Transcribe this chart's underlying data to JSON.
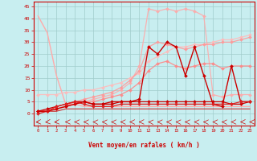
{
  "background_color": "#c8eef0",
  "grid_color": "#a0cccc",
  "xlim": [
    -0.5,
    23.5
  ],
  "ylim": [
    0,
    47
  ],
  "xlabel": "Vent moyen/en rafales ( km/h )",
  "xlabel_color": "#cc0000",
  "yticks": [
    0,
    5,
    10,
    15,
    20,
    25,
    30,
    35,
    40,
    45
  ],
  "xticks": [
    0,
    1,
    2,
    3,
    4,
    5,
    6,
    7,
    8,
    9,
    10,
    11,
    12,
    13,
    14,
    15,
    16,
    17,
    18,
    19,
    20,
    21,
    22,
    23
  ],
  "series": [
    {
      "x": [
        0,
        1,
        2,
        3,
        4,
        5,
        6,
        7,
        8,
        9,
        10,
        11,
        12,
        13,
        14,
        15,
        16,
        17,
        18,
        19,
        20,
        21,
        22,
        23
      ],
      "y": [
        41,
        34,
        16,
        4,
        4,
        3,
        3,
        3,
        3,
        3,
        3,
        3,
        3,
        3,
        3,
        3,
        3,
        3,
        3,
        3,
        3,
        3,
        3,
        3
      ],
      "color": "#ffaaaa",
      "marker": null,
      "linewidth": 1.0,
      "alpha": 1.0
    },
    {
      "x": [
        0,
        1,
        2,
        3,
        4,
        5,
        6,
        7,
        8,
        9,
        10,
        11,
        12,
        13,
        14,
        15,
        16,
        17,
        18,
        19,
        20,
        21,
        22,
        23
      ],
      "y": [
        8,
        8,
        8,
        9,
        9,
        10,
        10,
        11,
        12,
        13,
        15,
        17,
        22,
        24,
        26,
        28,
        28,
        29,
        29,
        30,
        31,
        31,
        32,
        33
      ],
      "color": "#ffbbbb",
      "marker": "D",
      "markersize": 2.0,
      "linewidth": 0.9,
      "alpha": 0.9
    },
    {
      "x": [
        0,
        1,
        2,
        3,
        4,
        5,
        6,
        7,
        8,
        9,
        10,
        11,
        12,
        13,
        14,
        15,
        16,
        17,
        18,
        19,
        20,
        21,
        22,
        23
      ],
      "y": [
        1,
        1,
        2,
        3,
        4,
        5,
        6,
        7,
        8,
        10,
        13,
        20,
        44,
        43,
        44,
        43,
        44,
        43,
        41,
        8,
        7,
        8,
        8,
        8
      ],
      "color": "#ffaaaa",
      "marker": "D",
      "markersize": 2.0,
      "linewidth": 0.9,
      "alpha": 0.9
    },
    {
      "x": [
        0,
        1,
        2,
        3,
        4,
        5,
        6,
        7,
        8,
        9,
        10,
        11,
        12,
        13,
        14,
        15,
        16,
        17,
        18,
        19,
        20,
        21,
        22,
        23
      ],
      "y": [
        1,
        1,
        2,
        3,
        5,
        6,
        7,
        8,
        9,
        11,
        14,
        18,
        28,
        30,
        29,
        28,
        27,
        28,
        29,
        29,
        30,
        30,
        31,
        32
      ],
      "color": "#ff9999",
      "marker": "D",
      "markersize": 2.0,
      "linewidth": 0.9,
      "alpha": 0.9
    },
    {
      "x": [
        0,
        1,
        2,
        3,
        4,
        5,
        6,
        7,
        8,
        9,
        10,
        11,
        12,
        13,
        14,
        15,
        16,
        17,
        18,
        19,
        20,
        21,
        22,
        23
      ],
      "y": [
        1,
        1,
        2,
        3,
        4,
        5,
        5,
        6,
        7,
        8,
        10,
        13,
        18,
        21,
        22,
        20,
        19,
        20,
        21,
        21,
        19,
        20,
        20,
        20
      ],
      "color": "#ff8888",
      "marker": "D",
      "markersize": 2.0,
      "linewidth": 0.9,
      "alpha": 0.9
    },
    {
      "x": [
        0,
        1,
        2,
        3,
        4,
        5,
        6,
        7,
        8,
        9,
        10,
        11,
        12,
        13,
        14,
        15,
        16,
        17,
        18,
        19,
        20,
        21,
        22,
        23
      ],
      "y": [
        1,
        1,
        2,
        3,
        4,
        5,
        4,
        4,
        5,
        5,
        5,
        6,
        28,
        25,
        30,
        28,
        16,
        28,
        16,
        4,
        3,
        20,
        5,
        5
      ],
      "color": "#cc0000",
      "marker": "D",
      "markersize": 2.0,
      "linewidth": 1.0,
      "alpha": 1.0
    },
    {
      "x": [
        0,
        1,
        2,
        3,
        4,
        5,
        6,
        7,
        8,
        9,
        10,
        11,
        12,
        13,
        14,
        15,
        16,
        17,
        18,
        19,
        20,
        21,
        22,
        23
      ],
      "y": [
        1,
        2,
        3,
        4,
        5,
        5,
        4,
        4,
        4,
        5,
        5,
        5,
        5,
        5,
        5,
        5,
        5,
        5,
        5,
        5,
        5,
        4,
        4,
        5
      ],
      "color": "#cc0000",
      "marker": "D",
      "markersize": 2.0,
      "linewidth": 0.9,
      "alpha": 1.0
    },
    {
      "x": [
        0,
        1,
        2,
        3,
        4,
        5,
        6,
        7,
        8,
        9,
        10,
        11,
        12,
        13,
        14,
        15,
        16,
        17,
        18,
        19,
        20,
        21,
        22,
        23
      ],
      "y": [
        0,
        1,
        3,
        4,
        5,
        4,
        3,
        3,
        3,
        4,
        4,
        4,
        4,
        4,
        4,
        4,
        4,
        4,
        4,
        4,
        4,
        4,
        5,
        5
      ],
      "color": "#dd2222",
      "marker": "D",
      "markersize": 2.0,
      "linewidth": 0.9,
      "alpha": 1.0
    },
    {
      "x": [
        0,
        1,
        2,
        3,
        4,
        5,
        6,
        7,
        8,
        9,
        10,
        11,
        12,
        13,
        14,
        15,
        16,
        17,
        18,
        19,
        20,
        21,
        22,
        23
      ],
      "y": [
        1,
        1,
        1,
        2,
        2,
        2,
        2,
        2,
        2,
        2,
        2,
        2,
        2,
        2,
        2,
        2,
        2,
        2,
        2,
        2,
        2,
        2,
        2,
        2
      ],
      "color": "#cc0000",
      "marker": null,
      "linewidth": 0.8,
      "alpha": 0.8
    }
  ],
  "wind_arrows": {
    "y_data": -1.5,
    "color": "#cc0000",
    "positions": [
      0,
      1,
      2,
      3,
      4,
      5,
      6,
      7,
      8,
      9,
      10,
      11,
      12,
      13,
      14,
      15,
      16,
      17,
      18,
      19,
      20,
      21,
      22,
      23
    ],
    "directions": [
      -150,
      -140,
      -150,
      -170,
      180,
      175,
      170,
      170,
      175,
      180,
      -175,
      -170,
      160,
      170,
      175,
      170,
      175,
      175,
      170,
      175,
      170,
      -170,
      -160,
      -170
    ]
  }
}
